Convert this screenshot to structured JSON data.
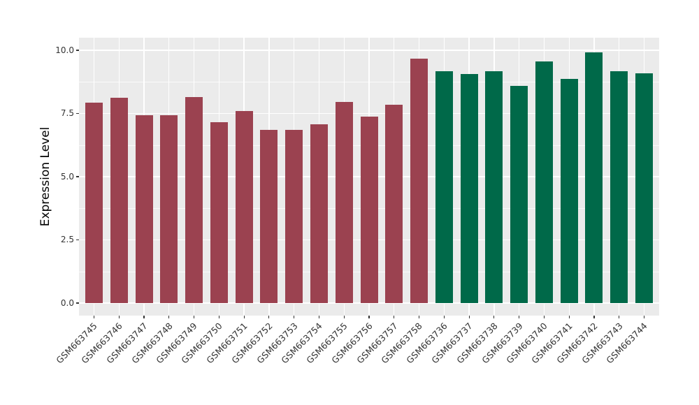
{
  "chart_data": {
    "type": "bar",
    "title": "",
    "xlabel": "",
    "ylabel": "Expression Level",
    "ylim": [
      0,
      10.5
    ],
    "y_major_ticks": [
      0,
      2.5,
      5,
      7.5,
      10
    ],
    "y_tick_labels": [
      "0.0",
      "2.5",
      "5.0",
      "7.5",
      "10.0"
    ],
    "y_minor_ticks": [
      1.25,
      3.75,
      6.25,
      8.75
    ],
    "grid": "on",
    "legend": "none",
    "panel_background": "#EBEBEB",
    "gridline_color": "#FFFFFF",
    "categories": [
      "GSM663745",
      "GSM663746",
      "GSM663747",
      "GSM663748",
      "GSM663749",
      "GSM663750",
      "GSM663751",
      "GSM663752",
      "GSM663753",
      "GSM663754",
      "GSM663755",
      "GSM663756",
      "GSM663757",
      "GSM663758",
      "GSM663736",
      "GSM663737",
      "GSM663738",
      "GSM663739",
      "GSM663740",
      "GSM663741",
      "GSM663742",
      "GSM663743",
      "GSM663744"
    ],
    "values": [
      7.93,
      8.12,
      7.43,
      7.43,
      8.15,
      7.15,
      7.59,
      6.86,
      6.84,
      7.08,
      7.96,
      7.37,
      7.85,
      9.67,
      9.17,
      9.05,
      9.18,
      8.6,
      9.57,
      8.88,
      9.93,
      9.17,
      9.08
    ],
    "groups": [
      "group1",
      "group1",
      "group1",
      "group1",
      "group1",
      "group1",
      "group1",
      "group1",
      "group1",
      "group1",
      "group1",
      "group1",
      "group1",
      "group1",
      "group2",
      "group2",
      "group2",
      "group2",
      "group2",
      "group2",
      "group2",
      "group2",
      "group2"
    ],
    "group_colors": {
      "group1": "#9B4250",
      "group2": "#006949"
    }
  }
}
